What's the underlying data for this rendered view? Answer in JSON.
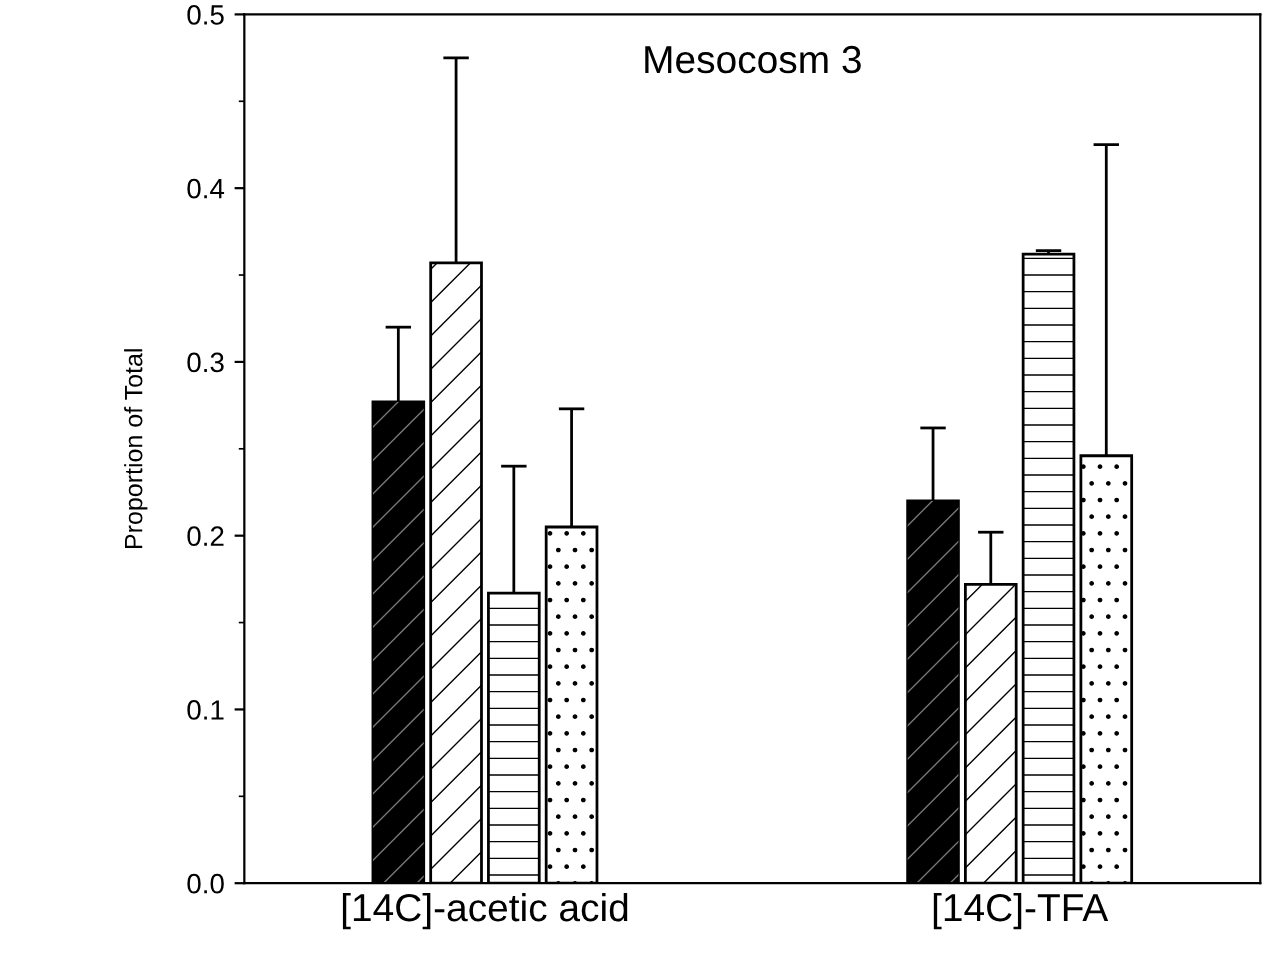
{
  "chart_data": {
    "type": "bar",
    "title": "Mesocosm 3",
    "ylabel": "Proportion of Total",
    "categories": [
      "[14C]-acetic acid",
      "[14C]-TFA"
    ],
    "series": [
      {
        "color": "#000000",
        "values": [
          0.277,
          0.22
        ],
        "errors": [
          [
            0.277,
            0.32
          ],
          [
            0.22,
            0.262
          ]
        ]
      },
      {
        "color": "#ffffff",
        "values": [
          0.357,
          0.172
        ],
        "errors": [
          [
            0.357,
            0.475
          ],
          [
            0.172,
            0.202
          ]
        ]
      },
      {
        "color": "#ffffff",
        "values": [
          0.167,
          0.362
        ],
        "errors": [
          [
            0.167,
            0.24
          ],
          [
            0.362,
            0.364
          ]
        ]
      },
      {
        "color": "#ffffff",
        "values": [
          0.205,
          0.246
        ],
        "errors": [
          [
            0.205,
            0.273
          ],
          [
            0.246,
            0.425
          ]
        ]
      }
    ],
    "ylim": [
      0,
      0.5
    ],
    "yticks": [
      {
        "value": 0,
        "label": "0.0"
      },
      0.1,
      0.2,
      0.3,
      0.4,
      0.5
    ],
    "grid": false,
    "legend": false
  }
}
